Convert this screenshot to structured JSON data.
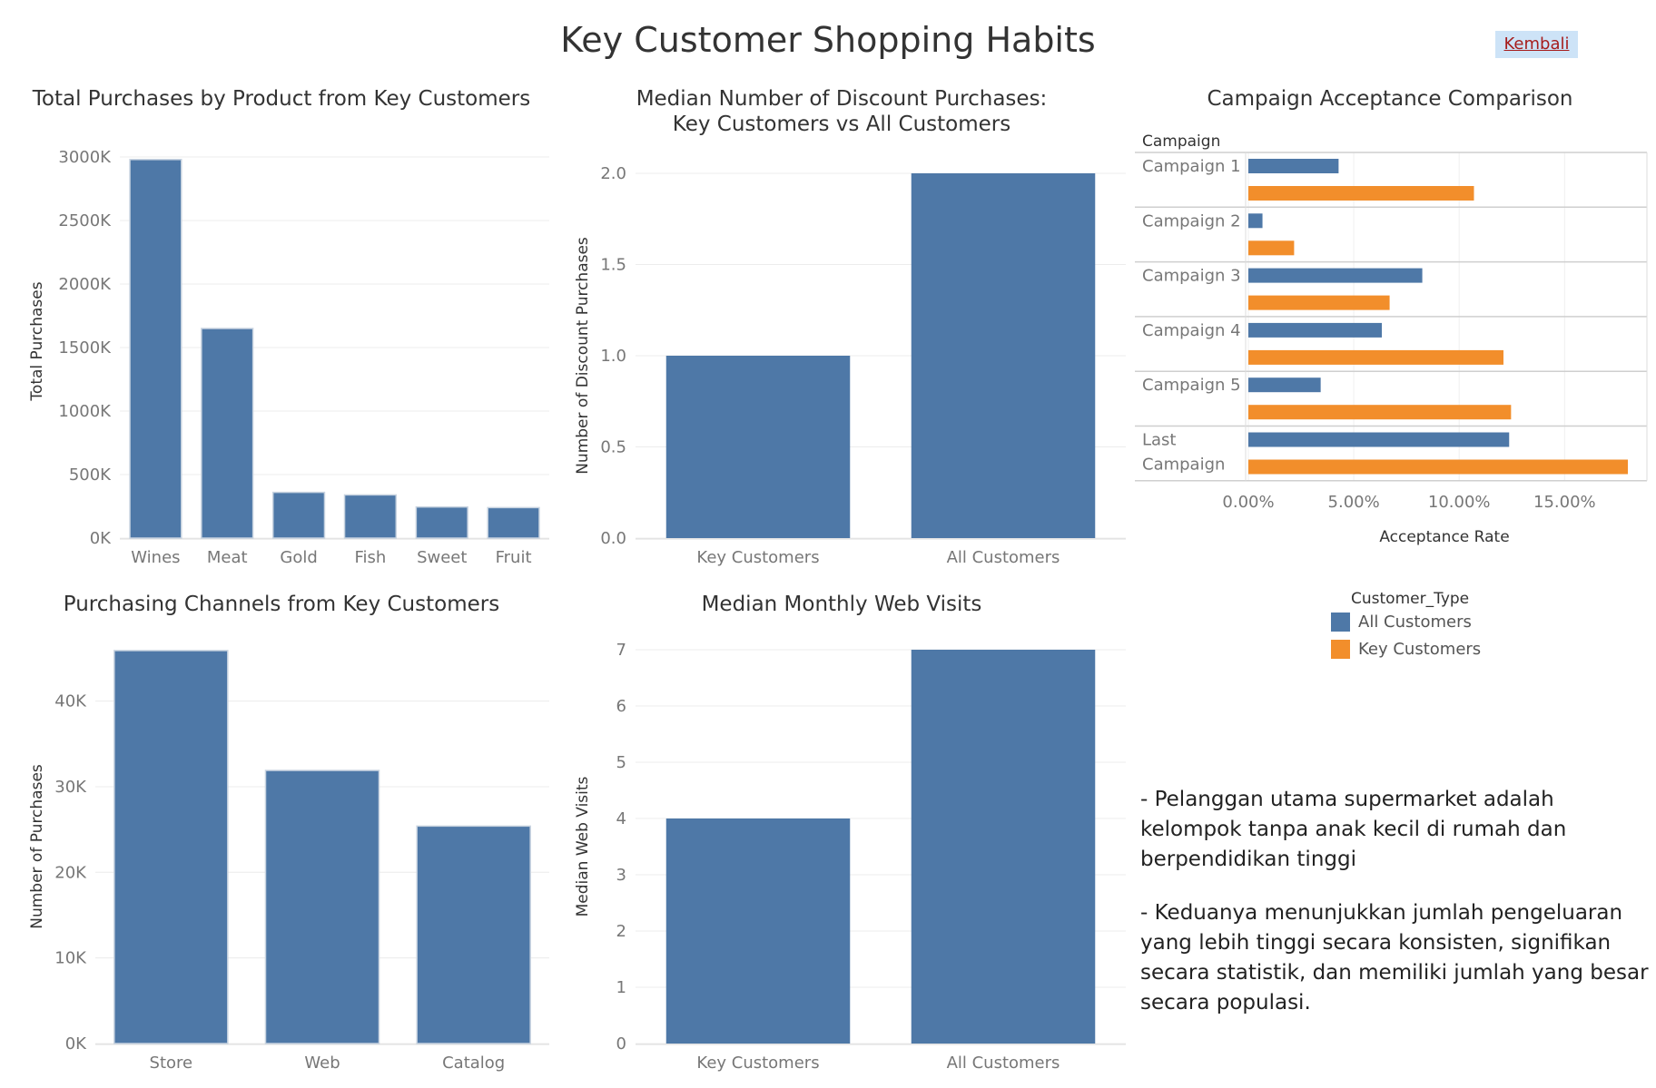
{
  "page": {
    "title": "Key Customer Shopping Habits",
    "back_label": "Kembali"
  },
  "colors": {
    "all_customers": "#4e78a7",
    "key_customers": "#f28e2b"
  },
  "chart_data": [
    {
      "id": "purchases-by-product",
      "type": "bar",
      "title": "Total Purchases by Product from Key Customers",
      "xlabel": "",
      "ylabel": "Total Purchases",
      "categories": [
        "Wines",
        "Meat",
        "Gold",
        "Fish",
        "Sweet",
        "Fruit"
      ],
      "values": [
        2980000,
        1650000,
        360000,
        340000,
        245000,
        240000
      ],
      "ylim": [
        0,
        3100000
      ],
      "yticks": [
        0,
        500000,
        1000000,
        1500000,
        2000000,
        2500000,
        3000000
      ],
      "ytick_labels": [
        "0K",
        "500K",
        "1000K",
        "1500K",
        "2000K",
        "2500K",
        "3000K"
      ],
      "grid": true
    },
    {
      "id": "median-discount-purchases",
      "type": "bar",
      "title": [
        "Median Number of Discount Purchases:",
        "Key Customers vs All Customers"
      ],
      "xlabel": "",
      "ylabel": "Number of Discount Purchases",
      "categories": [
        "Key Customers",
        "All Customers"
      ],
      "values": [
        1,
        2
      ],
      "ylim": [
        0,
        2
      ],
      "yticks": [
        0,
        0.5,
        1,
        1.5,
        2
      ],
      "ytick_labels": [
        "0.0",
        "0.5",
        "1.0",
        "1.5",
        "2.0"
      ],
      "grid": true
    },
    {
      "id": "campaign-acceptance",
      "type": "bar",
      "orientation": "horizontal",
      "title": "Campaign Acceptance Comparison",
      "row_header": "Campaign",
      "xlabel": "Acceptance Rate",
      "categories": [
        [
          "Campaign 1"
        ],
        [
          "Campaign 2"
        ],
        [
          "Campaign 3"
        ],
        [
          "Campaign 4"
        ],
        [
          "Campaign 5"
        ],
        [
          "Last",
          "Campaign"
        ]
      ],
      "series": [
        {
          "name": "All Customers",
          "values": [
            0.0428,
            0.0067,
            0.0825,
            0.0633,
            0.0343,
            0.1237
          ]
        },
        {
          "name": "Key Customers",
          "values": [
            0.107,
            0.0217,
            0.067,
            0.121,
            0.1246,
            0.18
          ]
        }
      ],
      "xlim": [
        0,
        0.18
      ],
      "xticks": [
        0,
        0.05,
        0.1,
        0.15
      ],
      "xtick_labels": [
        "0.00%",
        "5.00%",
        "10.00%",
        "15.00%"
      ],
      "grid": true
    },
    {
      "id": "purchasing-channels",
      "type": "bar",
      "title": "Purchasing Channels from Key Customers",
      "xlabel": "",
      "ylabel": "Number of Purchases",
      "categories": [
        "Store",
        "Web",
        "Catalog"
      ],
      "values": [
        45900,
        31900,
        25400
      ],
      "ylim": [
        0,
        46000
      ],
      "yticks": [
        0,
        10000,
        20000,
        30000,
        40000
      ],
      "ytick_labels": [
        "0K",
        "10K",
        "20K",
        "30K",
        "40K"
      ],
      "grid": true
    },
    {
      "id": "median-web-visits",
      "type": "bar",
      "title": "Median Monthly Web Visits",
      "xlabel": "",
      "ylabel": "Median Web Visits",
      "categories": [
        "Key Customers",
        "All Customers"
      ],
      "values": [
        4,
        7
      ],
      "ylim": [
        0,
        7
      ],
      "yticks": [
        0,
        1,
        2,
        3,
        4,
        5,
        6,
        7
      ],
      "ytick_labels": [
        "0",
        "1",
        "2",
        "3",
        "4",
        "5",
        "6",
        "7"
      ],
      "grid": true
    }
  ],
  "legend": {
    "title": "Customer_Type",
    "items": [
      {
        "label": "All Customers",
        "color": "#4e78a7"
      },
      {
        "label": "Key Customers",
        "color": "#f28e2b"
      }
    ]
  },
  "notes": [
    "- Pelanggan utama supermarket adalah kelompok tanpa anak kecil di rumah dan berpendidikan tinggi",
    "- Keduanya menunjukkan jumlah pengeluaran yang lebih tinggi secara konsisten, signifikan secara statistik, dan memiliki jumlah yang besar secara populasi."
  ]
}
